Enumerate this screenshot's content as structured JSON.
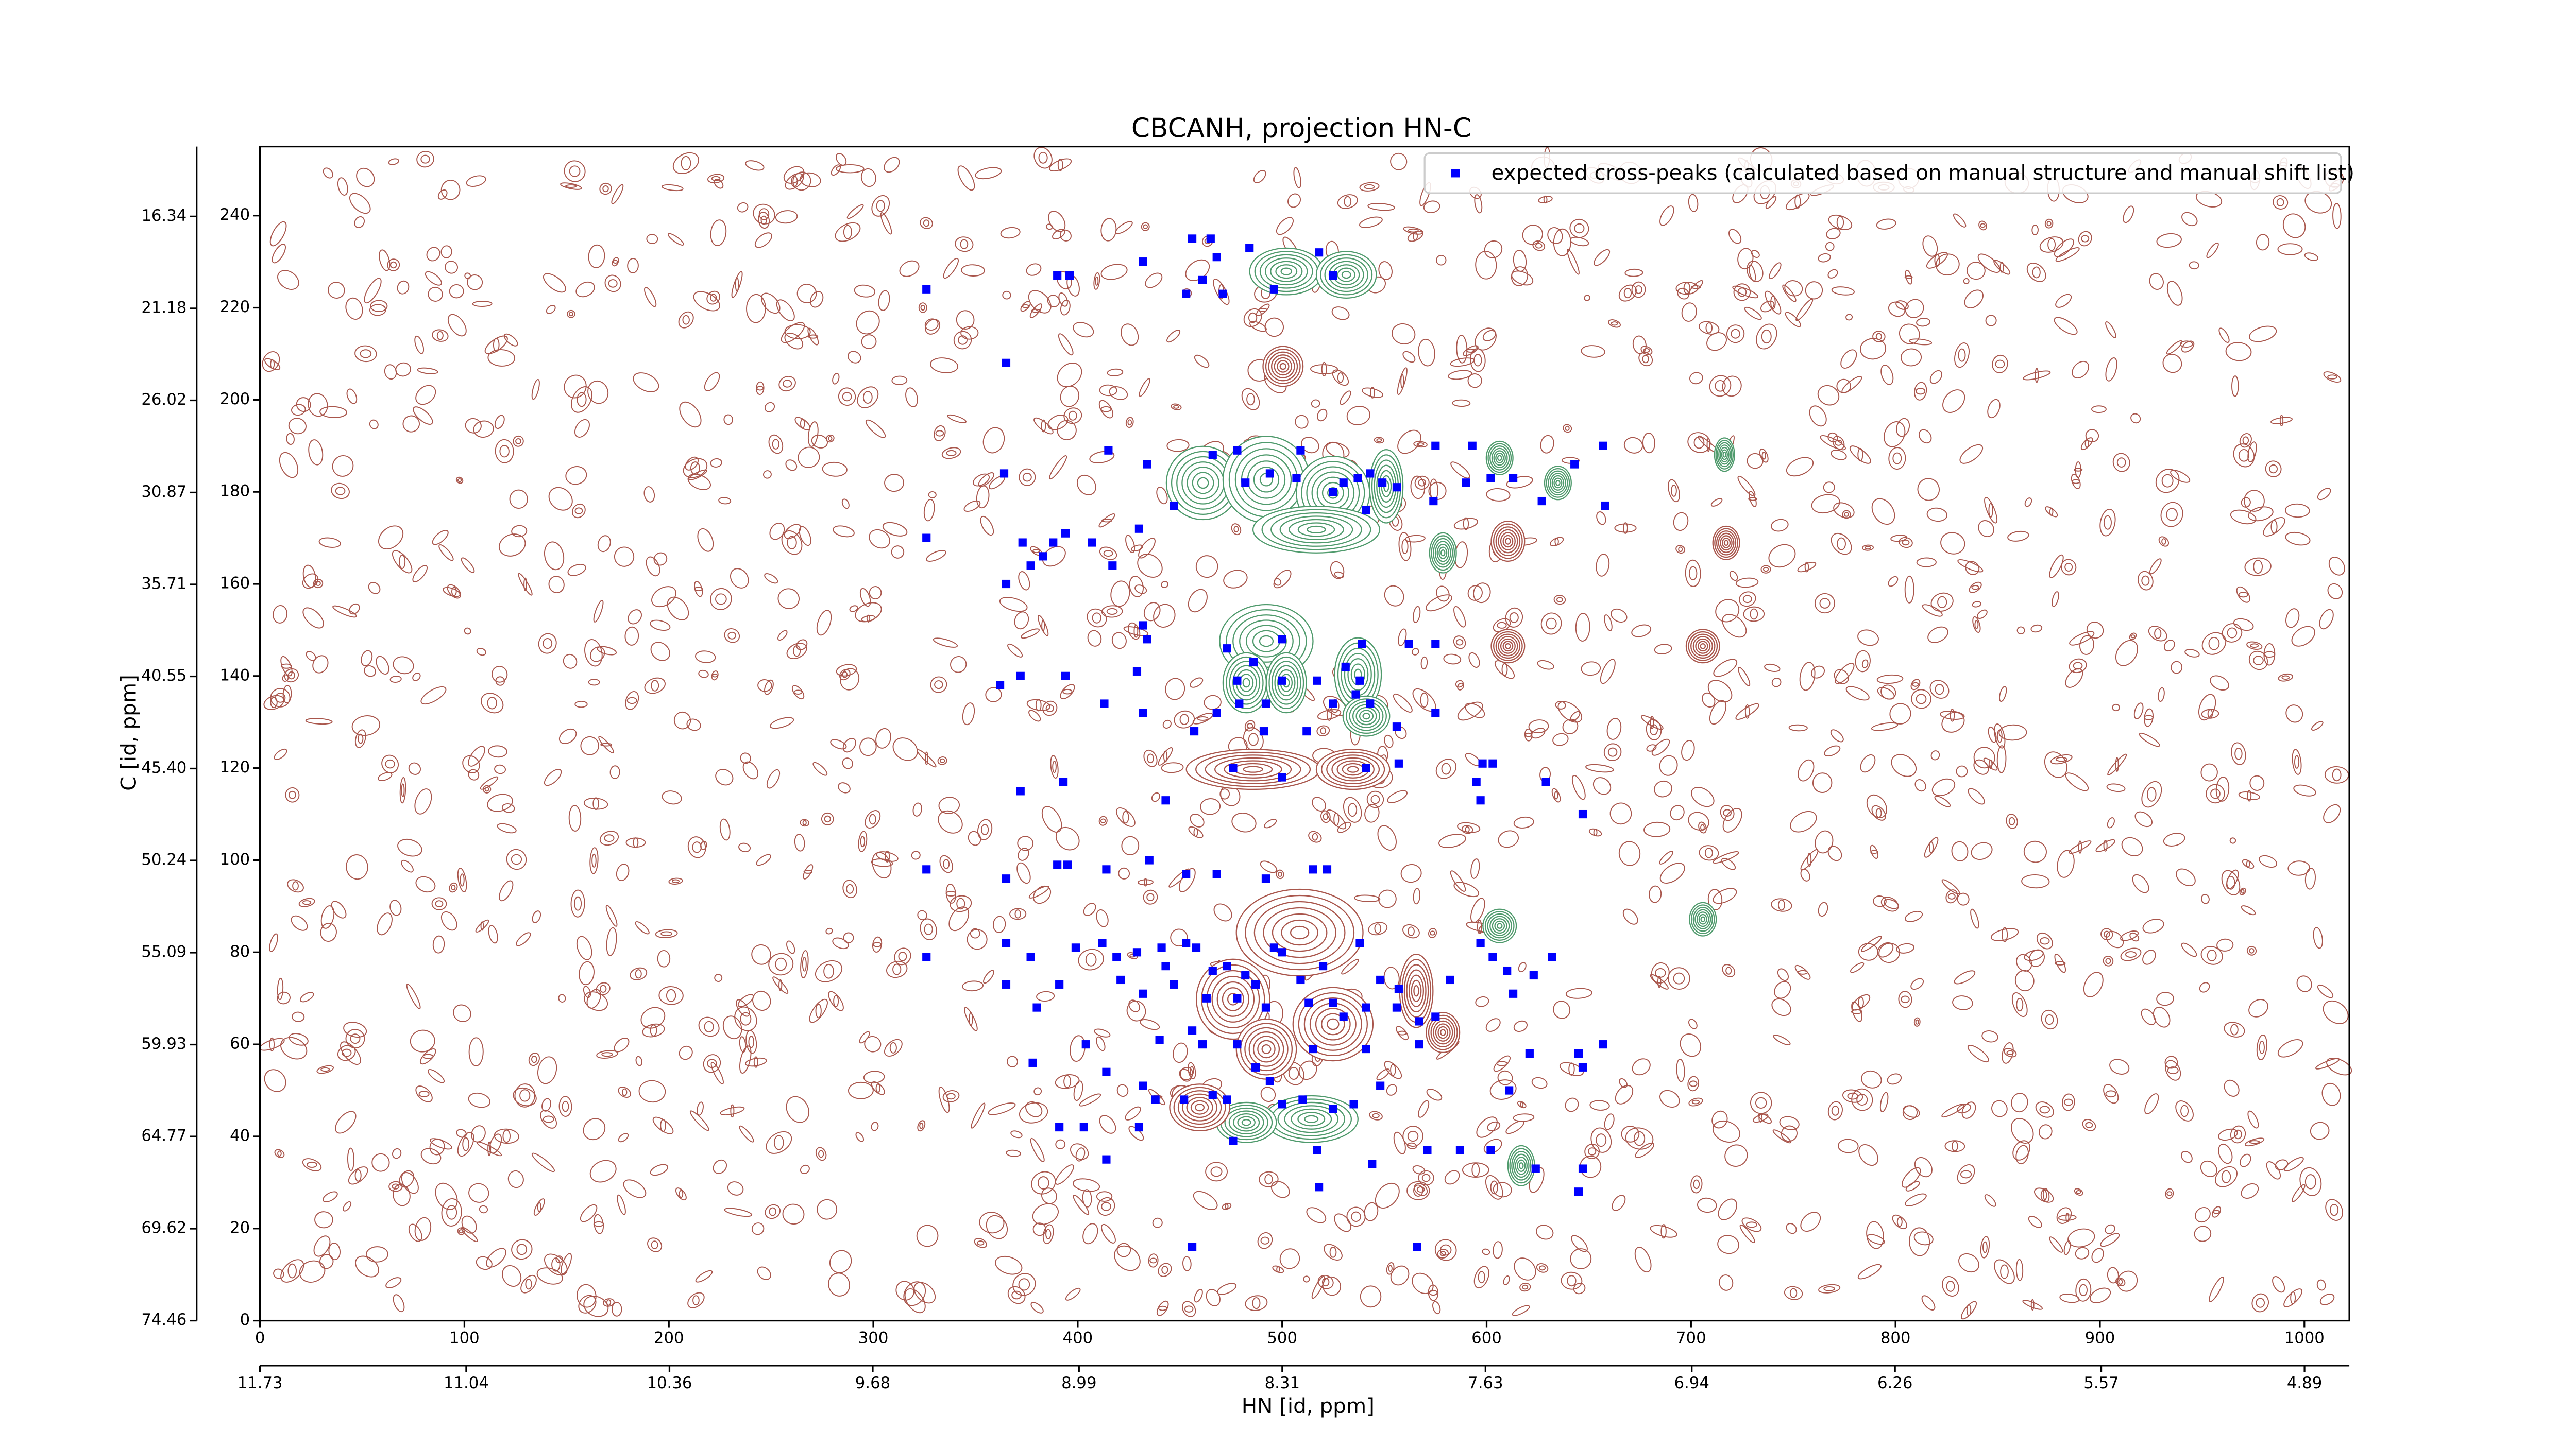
{
  "chart_data": {
    "type": "scatter",
    "title": "CBCANH, projection HN-C",
    "xlabel": "HN [id, ppm]",
    "ylabel": "C [id, ppm]",
    "xlim": [
      0,
      1022
    ],
    "xticks": [
      0,
      100,
      200,
      300,
      400,
      500,
      600,
      700,
      800,
      900,
      1000
    ],
    "ylim": [
      0,
      255
    ],
    "yticks": [
      0,
      20,
      40,
      60,
      80,
      100,
      120,
      140,
      160,
      180,
      200,
      220,
      240
    ],
    "x2lim": [
      11.73,
      4.74
    ],
    "x2ticks": [
      11.73,
      11.04,
      10.36,
      9.68,
      8.99,
      8.31,
      7.63,
      6.94,
      6.26,
      5.57,
      4.89
    ],
    "y2lim": [
      74.46,
      12.66
    ],
    "y2ticks": [
      16.34,
      21.18,
      26.02,
      30.87,
      35.71,
      40.55,
      {
        "value": 45.4,
        "label": "45.40"
      },
      50.24,
      55.09,
      59.93,
      64.77,
      69.62,
      74.46
    ],
    "legend": "upper right",
    "series": [
      {
        "name": "expected cross-peaks (calculated based on manual structure and manual shift list)",
        "color": "#0000ff",
        "x": [
          326,
          365,
          390,
          396,
          432,
          456,
          465,
          468,
          453,
          461,
          471,
          484,
          496,
          518,
          525,
          415,
          364,
          434,
          466,
          478,
          482,
          494,
          509,
          507,
          525,
          530,
          537,
          543,
          549,
          541,
          556,
          575,
          574,
          590,
          593,
          602,
          613,
          627,
          643,
          657,
          658,
          326,
          373,
          388,
          394,
          383,
          407,
          430,
          447,
          377,
          417,
          365,
          432,
          434,
          473,
          500,
          486,
          539,
          562,
          575,
          478,
          500,
          517,
          531,
          538,
          362,
          372,
          394,
          429,
          413,
          432,
          457,
          468,
          479,
          492,
          525,
          536,
          543,
          556,
          575,
          491,
          512,
          557,
          598,
          603,
          595,
          372,
          393,
          476,
          500,
          541,
          629,
          647,
          597,
          443,
          326,
          365,
          390,
          395,
          414,
          435,
          453,
          468,
          492,
          515,
          522,
          365,
          377,
          326,
          365,
          380,
          391,
          399,
          412,
          419,
          421,
          429,
          432,
          441,
          443,
          447,
          453,
          458,
          463,
          466,
          473,
          478,
          482,
          487,
          492,
          496,
          500,
          509,
          513,
          520,
          525,
          530,
          538,
          541,
          548,
          556,
          557,
          567,
          575,
          582,
          597,
          603,
          610,
          613,
          623,
          632,
          378,
          404,
          414,
          432,
          440,
          461,
          456,
          478,
          487,
          515,
          541,
          567,
          621,
          645,
          647,
          657,
          438,
          452,
          466,
          473,
          494,
          500,
          510,
          525,
          535,
          548,
          611,
          403,
          391,
          430,
          476,
          517,
          544,
          571,
          587,
          602,
          624,
          647,
          414,
          518,
          456,
          566,
          645
        ],
        "values": [
          224,
          208,
          227,
          227,
          230,
          235,
          235,
          231,
          223,
          226,
          223,
          233,
          224,
          232,
          227,
          189,
          184,
          186,
          188,
          189,
          182,
          184,
          189,
          183,
          180,
          182,
          183,
          184,
          182,
          176,
          181,
          190,
          178,
          182,
          190,
          183,
          183,
          178,
          186,
          190,
          177,
          170,
          169,
          169,
          171,
          166,
          169,
          172,
          177,
          164,
          164,
          160,
          151,
          148,
          146,
          148,
          143,
          147,
          147,
          147,
          139,
          139,
          139,
          142,
          139,
          138,
          140,
          140,
          141,
          134,
          132,
          128,
          132,
          134,
          134,
          134,
          136,
          134,
          129,
          132,
          128,
          128,
          121,
          121,
          121,
          117,
          115,
          117,
          120,
          118,
          120,
          117,
          110,
          113,
          113,
          98,
          96,
          99,
          99,
          98,
          100,
          97,
          97,
          96,
          98,
          98,
          82,
          79,
          79,
          73,
          68,
          73,
          81,
          82,
          79,
          74,
          80,
          71,
          81,
          77,
          73,
          82,
          81,
          70,
          76,
          77,
          70,
          75,
          73,
          68,
          81,
          80,
          74,
          69,
          77,
          69,
          66,
          82,
          68,
          74,
          68,
          72,
          65,
          66,
          74,
          82,
          79,
          76,
          71,
          75,
          79,
          56,
          60,
          54,
          51,
          61,
          60,
          63,
          60,
          55,
          59,
          59,
          60,
          58,
          58,
          55,
          60,
          48,
          48,
          49,
          48,
          52,
          47,
          48,
          46,
          47,
          51,
          50,
          42,
          42,
          42,
          39,
          37,
          34,
          37,
          37,
          37,
          33,
          33,
          35,
          29,
          16,
          16,
          28
        ]
      }
    ]
  }
}
